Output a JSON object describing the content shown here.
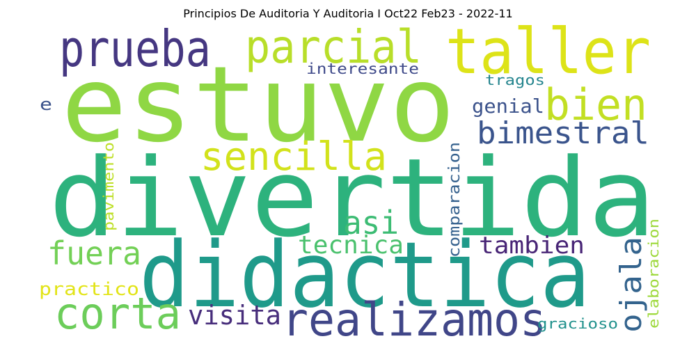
{
  "title": "Principios De Auditoria Y Auditoria I Oct22 Feb23 - 2022-11",
  "words": [
    {
      "text": "estuvo",
      "color": "#8fd744"
    },
    {
      "text": "divertida",
      "color": "#2db27d"
    },
    {
      "text": "didactica",
      "color": "#1f9a8a"
    },
    {
      "text": "taller",
      "color": "#dde318"
    },
    {
      "text": "prueba",
      "color": "#453781"
    },
    {
      "text": "parcial",
      "color": "#b8de29"
    },
    {
      "text": "bien",
      "color": "#c2df23"
    },
    {
      "text": "bimestral",
      "color": "#3a548c"
    },
    {
      "text": "sencilla",
      "color": "#d2e21b"
    },
    {
      "text": "realizamos",
      "color": "#404688"
    },
    {
      "text": "corta",
      "color": "#6ccd5a"
    },
    {
      "text": "fuera",
      "color": "#73d056"
    },
    {
      "text": "asi",
      "color": "#3dbc74"
    },
    {
      "text": "tecnica",
      "color": "#4ac16d"
    },
    {
      "text": "tambien",
      "color": "#482576"
    },
    {
      "text": "ojala",
      "color": "#33638d"
    },
    {
      "text": "visita",
      "color": "#472d7b"
    },
    {
      "text": "practico",
      "color": "#e2e418"
    },
    {
      "text": "genial",
      "color": "#3b528b"
    },
    {
      "text": "tragos",
      "color": "#25858e"
    },
    {
      "text": "interesante",
      "color": "#3e4989"
    },
    {
      "text": "e",
      "color": "#3b528b"
    },
    {
      "text": "pavimento",
      "color": "#bddf26"
    },
    {
      "text": "comparacion",
      "color": "#34608d"
    },
    {
      "text": "elaboracion",
      "color": "#9dd93b"
    },
    {
      "text": "gracioso",
      "color": "#21918c"
    }
  ]
}
